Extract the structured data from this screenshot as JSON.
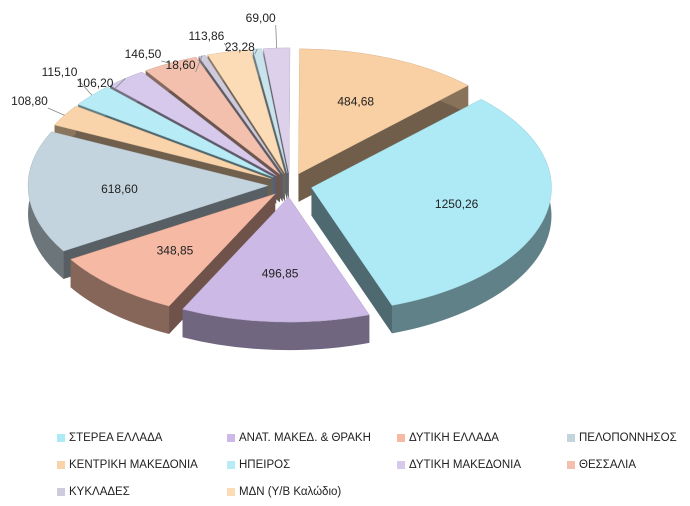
{
  "chart_data": {
    "type": "pie",
    "categories": [
      "ΣΤΕΡΕΑ ΕΛΛΑΔΑ",
      "ΑΝΑΤ. ΜΑΚΕΔ. & ΘΡΑΚΗ",
      "ΔΥΤΙΚΗ ΕΛΛΑΔΑ",
      "ΠΕΛΟΠΟΝΝΗΣΟΣ",
      "ΚΕΝΤΡΙΚΗ ΜΑΚΕΔΟΝΙΑ",
      "ΗΠΕΙΡΟΣ",
      "ΔΥΤΙΚΗ ΜΑΚΕΔΟΝΙΑ",
      "ΘΕΣΣΑΛΙΑ",
      "ΚΥΚΛΑΔΕΣ",
      "ΜΔΝ (Υ/Β Καλώδιο)",
      null,
      null,
      null
    ],
    "values": [
      1250.26,
      496.85,
      348.85,
      618.6,
      108.8,
      115.1,
      106.2,
      146.5,
      18.6,
      113.86,
      23.28,
      69.0,
      484.68
    ],
    "value_labels": [
      "1250,26",
      "496,85",
      "348,85",
      "618,60",
      "108,80",
      "115,10",
      "106,20",
      "146,50",
      "18,60",
      "113,86",
      "23,28",
      "69,00",
      "484,68"
    ],
    "colors": [
      "#aeeaf6",
      "#cdb9e6",
      "#f6b9a4",
      "#c3d4de",
      "#f9d3aa",
      "#b7ecf6",
      "#d7c9ec",
      "#f3c0ae",
      "#d0cbdc",
      "#fbdcb6",
      "#c8e3ec",
      "#ddd0ea",
      "#f9cfa4"
    ],
    "legend": "bottom"
  }
}
